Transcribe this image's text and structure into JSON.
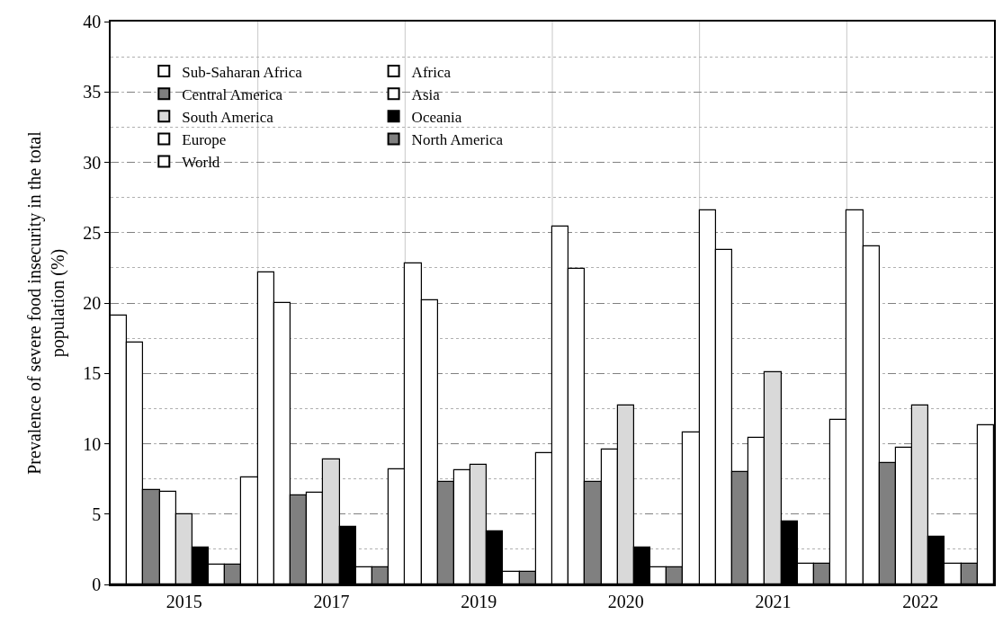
{
  "chart_data": {
    "type": "bar",
    "ylabel": "Prevalence of severe food insecurity in the total\npopulation (%)",
    "categories": [
      "2015",
      "2017",
      "2019",
      "2020",
      "2021",
      "2022"
    ],
    "series": [
      {
        "name": "Sub-Saharan Africa",
        "color": "#ffffff",
        "values": [
          19.1,
          22.2,
          22.8,
          25.4,
          26.6,
          26.6
        ]
      },
      {
        "name": "Africa",
        "color": "#ffffff",
        "values": [
          17.2,
          20.0,
          20.2,
          22.4,
          23.8,
          24.0
        ]
      },
      {
        "name": "Central America",
        "color": "#808080",
        "values": [
          6.7,
          6.3,
          7.3,
          7.3,
          8.0,
          8.6
        ]
      },
      {
        "name": "Asia",
        "color": "#ffffff",
        "values": [
          6.6,
          6.5,
          8.1,
          9.6,
          10.4,
          9.7
        ]
      },
      {
        "name": "South America",
        "color": "#d9d9d9",
        "values": [
          5.0,
          8.9,
          8.5,
          12.7,
          15.1,
          12.7
        ]
      },
      {
        "name": "Oceania",
        "color": "#000000",
        "values": [
          2.6,
          4.1,
          3.8,
          2.6,
          4.5,
          3.4
        ]
      },
      {
        "name": "Europe",
        "color": "#ffffff",
        "values": [
          1.4,
          1.2,
          0.9,
          1.2,
          1.5,
          1.5
        ]
      },
      {
        "name": "North America",
        "color": "#808080",
        "values": [
          1.4,
          1.2,
          0.9,
          1.2,
          1.5,
          1.5
        ]
      },
      {
        "name": "World",
        "color": "#ffffff",
        "values": [
          7.6,
          8.2,
          9.3,
          10.8,
          11.7,
          11.3
        ]
      }
    ],
    "ylim": [
      0,
      40
    ],
    "yticks": [
      0,
      5,
      10,
      15,
      20,
      25,
      30,
      35,
      40
    ],
    "grid": true,
    "legend": "top left"
  }
}
